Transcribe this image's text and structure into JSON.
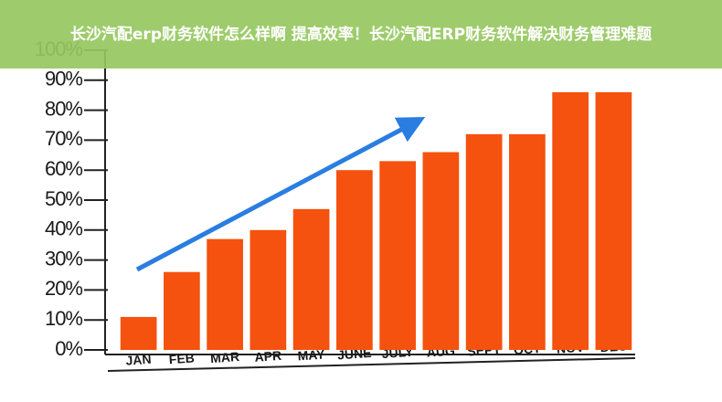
{
  "chart_data": {
    "type": "bar",
    "title": "长沙汽配erp财务软件怎么样啊 提高效率！长沙汽配ERP财务软件解决财务管理难题",
    "categories": [
      "JAN",
      "FEB",
      "MAR",
      "APR",
      "MAY",
      "JUNE",
      "JULY",
      "AUG",
      "SEPT",
      "OCT",
      "NOV",
      "DEC"
    ],
    "values": [
      11,
      26,
      37,
      40,
      47,
      60,
      63,
      66,
      72,
      72,
      86,
      86
    ],
    "color": "#f4520e",
    "ylim": [
      0,
      100
    ],
    "yticks": [
      {
        "value": 0,
        "label": "0%"
      },
      {
        "value": 10,
        "label": "10%"
      },
      {
        "value": 20,
        "label": "20%"
      },
      {
        "value": 30,
        "label": "30%"
      },
      {
        "value": 40,
        "label": "40%"
      },
      {
        "value": 50,
        "label": "50%"
      },
      {
        "value": 60,
        "label": "60%"
      },
      {
        "value": 70,
        "label": "70%"
      },
      {
        "value": 80,
        "label": "80%"
      },
      {
        "value": 90,
        "label": "90%"
      },
      {
        "value": 100,
        "label": "100%"
      }
    ],
    "grid": false
  }
}
